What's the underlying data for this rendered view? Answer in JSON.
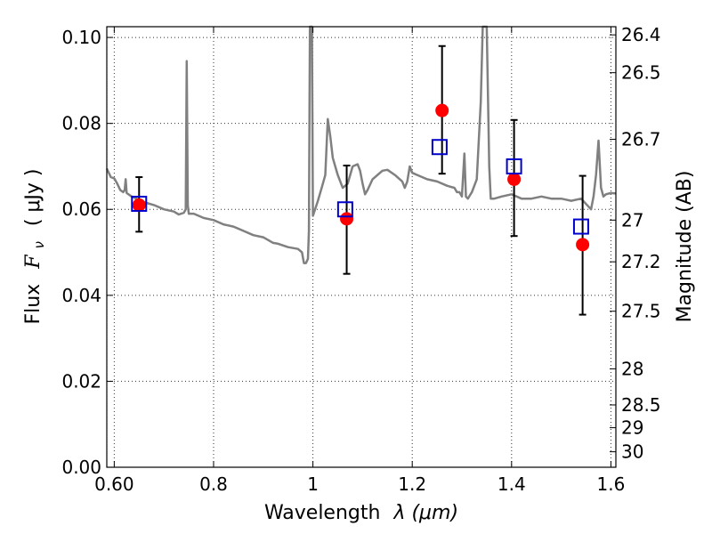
{
  "chart_data": {
    "type": "scatter",
    "xlabel_text": "Wavelength",
    "xlabel_math": "λ (μm)",
    "ylabel_text": "Flux",
    "ylabel_math": "F",
    "ylabel_sub": "ν",
    "ylabel_unit": "( μJy )",
    "ylabel_right": "Magnitude (AB)",
    "xlim": [
      0.585,
      1.61
    ],
    "ylim": [
      0.0,
      0.1025
    ],
    "grid": true,
    "x_ticks": [
      {
        "v": 0.6,
        "label": "0.60"
      },
      {
        "v": 0.8,
        "label": "0.8"
      },
      {
        "v": 1.0,
        "label": "1"
      },
      {
        "v": 1.2,
        "label": "1.2"
      },
      {
        "v": 1.4,
        "label": "1.4"
      },
      {
        "v": 1.6,
        "label": "1.6"
      }
    ],
    "y_ticks": [
      {
        "v": 0.0,
        "label": "0.00"
      },
      {
        "v": 0.02,
        "label": "0.02"
      },
      {
        "v": 0.04,
        "label": "0.04"
      },
      {
        "v": 0.06,
        "label": "0.06"
      },
      {
        "v": 0.08,
        "label": "0.08"
      },
      {
        "v": 0.1,
        "label": "0.10"
      }
    ],
    "right_ticks": [
      {
        "flux": 0.1006,
        "label": "26.4"
      },
      {
        "flux": 0.0918,
        "label": "26.5"
      },
      {
        "flux": 0.0763,
        "label": "26.7"
      },
      {
        "flux": 0.0575,
        "label": "27"
      },
      {
        "flux": 0.0478,
        "label": "27.2"
      },
      {
        "flux": 0.0363,
        "label": "27.5"
      },
      {
        "flux": 0.0229,
        "label": "28"
      },
      {
        "flux": 0.0145,
        "label": "28.5"
      },
      {
        "flux": 0.0092,
        "label": "29"
      },
      {
        "flux": 0.0036,
        "label": "30"
      }
    ],
    "model_spectrum": {
      "color": "#808080",
      "points": [
        [
          0.585,
          0.0695
        ],
        [
          0.593,
          0.0675
        ],
        [
          0.6,
          0.0672
        ],
        [
          0.606,
          0.066
        ],
        [
          0.612,
          0.0645
        ],
        [
          0.618,
          0.064
        ],
        [
          0.621,
          0.0645
        ],
        [
          0.623,
          0.067
        ],
        [
          0.625,
          0.0638
        ],
        [
          0.635,
          0.063
        ],
        [
          0.65,
          0.0622
        ],
        [
          0.665,
          0.0615
        ],
        [
          0.68,
          0.061
        ],
        [
          0.7,
          0.06
        ],
        [
          0.72,
          0.0595
        ],
        [
          0.73,
          0.0588
        ],
        [
          0.74,
          0.0592
        ],
        [
          0.744,
          0.06
        ],
        [
          0.746,
          0.0945
        ],
        [
          0.748,
          0.061
        ],
        [
          0.75,
          0.059
        ],
        [
          0.76,
          0.059
        ],
        [
          0.78,
          0.058
        ],
        [
          0.8,
          0.0575
        ],
        [
          0.82,
          0.0565
        ],
        [
          0.84,
          0.056
        ],
        [
          0.86,
          0.055
        ],
        [
          0.88,
          0.054
        ],
        [
          0.9,
          0.0535
        ],
        [
          0.92,
          0.0522
        ],
        [
          0.93,
          0.052
        ],
        [
          0.95,
          0.0512
        ],
        [
          0.97,
          0.0508
        ],
        [
          0.978,
          0.05
        ],
        [
          0.982,
          0.0475
        ],
        [
          0.986,
          0.0475
        ],
        [
          0.99,
          0.0485
        ],
        [
          0.992,
          0.055
        ],
        [
          0.994,
          0.1025
        ],
        [
          0.998,
          0.1025
        ],
        [
          1.0,
          0.0585
        ],
        [
          1.01,
          0.062
        ],
        [
          1.02,
          0.066
        ],
        [
          1.025,
          0.068
        ],
        [
          1.03,
          0.081
        ],
        [
          1.035,
          0.077
        ],
        [
          1.04,
          0.072
        ],
        [
          1.045,
          0.07
        ],
        [
          1.05,
          0.068
        ],
        [
          1.06,
          0.065
        ],
        [
          1.07,
          0.066
        ],
        [
          1.08,
          0.07
        ],
        [
          1.09,
          0.0705
        ],
        [
          1.095,
          0.069
        ],
        [
          1.1,
          0.066
        ],
        [
          1.105,
          0.0635
        ],
        [
          1.11,
          0.0645
        ],
        [
          1.12,
          0.067
        ],
        [
          1.14,
          0.069
        ],
        [
          1.15,
          0.0692
        ],
        [
          1.165,
          0.068
        ],
        [
          1.18,
          0.0665
        ],
        [
          1.185,
          0.065
        ],
        [
          1.19,
          0.0665
        ],
        [
          1.195,
          0.07
        ],
        [
          1.2,
          0.0685
        ],
        [
          1.21,
          0.068
        ],
        [
          1.23,
          0.067
        ],
        [
          1.25,
          0.0665
        ],
        [
          1.27,
          0.0655
        ],
        [
          1.285,
          0.065
        ],
        [
          1.29,
          0.064
        ],
        [
          1.295,
          0.064
        ],
        [
          1.3,
          0.063
        ],
        [
          1.305,
          0.073
        ],
        [
          1.308,
          0.063
        ],
        [
          1.312,
          0.0625
        ],
        [
          1.32,
          0.064
        ],
        [
          1.33,
          0.067
        ],
        [
          1.338,
          0.085
        ],
        [
          1.342,
          0.1025
        ],
        [
          1.35,
          0.1025
        ],
        [
          1.355,
          0.07
        ],
        [
          1.358,
          0.0625
        ],
        [
          1.365,
          0.0625
        ],
        [
          1.38,
          0.063
        ],
        [
          1.4,
          0.0635
        ],
        [
          1.42,
          0.0625
        ],
        [
          1.44,
          0.0625
        ],
        [
          1.46,
          0.063
        ],
        [
          1.48,
          0.0625
        ],
        [
          1.5,
          0.0625
        ],
        [
          1.52,
          0.062
        ],
        [
          1.54,
          0.0625
        ],
        [
          1.56,
          0.06
        ],
        [
          1.565,
          0.063
        ],
        [
          1.57,
          0.068
        ],
        [
          1.575,
          0.076
        ],
        [
          1.58,
          0.065
        ],
        [
          1.585,
          0.063
        ],
        [
          1.59,
          0.0635
        ],
        [
          1.6,
          0.0638
        ],
        [
          1.61,
          0.0637
        ]
      ]
    },
    "observed": {
      "color": "#ff0000",
      "points": [
        {
          "x": 0.65,
          "y": 0.061,
          "err_lo": 0.0548,
          "err_hi": 0.0675
        },
        {
          "x": 1.068,
          "y": 0.0578,
          "err_lo": 0.045,
          "err_hi": 0.0702
        },
        {
          "x": 1.26,
          "y": 0.083,
          "err_lo": 0.0683,
          "err_hi": 0.098
        },
        {
          "x": 1.405,
          "y": 0.067,
          "err_lo": 0.0538,
          "err_hi": 0.0808
        },
        {
          "x": 1.543,
          "y": 0.0518,
          "err_lo": 0.0355,
          "err_hi": 0.0678
        }
      ]
    },
    "model_photometry": {
      "color": "#0000cc",
      "points": [
        {
          "x": 0.65,
          "y": 0.0613
        },
        {
          "x": 1.065,
          "y": 0.06
        },
        {
          "x": 1.255,
          "y": 0.0745
        },
        {
          "x": 1.405,
          "y": 0.07
        },
        {
          "x": 1.54,
          "y": 0.056
        }
      ]
    }
  }
}
